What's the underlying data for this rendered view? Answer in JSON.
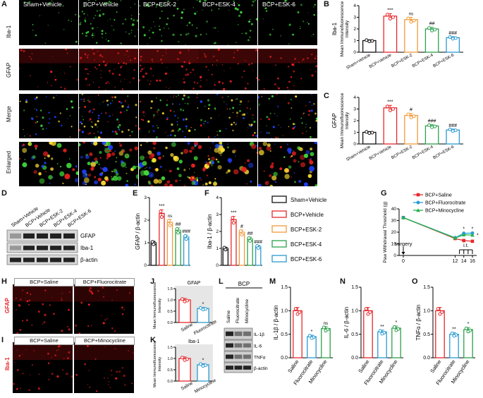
{
  "panels": {
    "A": {
      "label": "A",
      "columns": [
        "Sham+Vehicle",
        "BCP+Vehicle",
        "BCP+ESK-2",
        "BCP+ESK-4",
        "BCP+ESK-6"
      ],
      "rows": [
        "Iba-1",
        "GFAP",
        "Merge",
        "Enlarged"
      ]
    },
    "B": {
      "label": "B",
      "ylabel": "Iba-1",
      "ylabel2": "Mean Immunofluorescence\nIntensity",
      "chart_data": {
        "type": "bar",
        "categories": [
          "Sham+Vehicle",
          "BCP+Vehicle",
          "BCP+ESK-2",
          "BCP+ESK-4",
          "BCP+ESK-6"
        ],
        "values": [
          1.0,
          3.1,
          2.8,
          2.0,
          1.25
        ],
        "ylim": [
          0,
          4
        ],
        "yticks": [
          0,
          1,
          2,
          3,
          4
        ],
        "annotations": [
          "",
          "***",
          "ns",
          "##",
          "###"
        ]
      }
    },
    "C": {
      "label": "C",
      "ylabel": "GFAP",
      "ylabel2": "Mean Immunofluorescence\nIntensity",
      "chart_data": {
        "type": "bar",
        "categories": [
          "Sham+Vehicle",
          "BCP+Vehicle",
          "BCP+ESK-2",
          "BCP+ESK-4",
          "BCP+ESK-6"
        ],
        "values": [
          1.0,
          3.1,
          2.45,
          1.55,
          1.2
        ],
        "ylim": [
          0,
          4
        ],
        "yticks": [
          0,
          1,
          2,
          3,
          4
        ],
        "annotations": [
          "",
          "***",
          "#",
          "###",
          "###"
        ]
      }
    },
    "D": {
      "label": "D",
      "lanes": [
        "Sham+Vehicle",
        "BCP+Vehicle",
        "BCP+ESK-2",
        "BCP+ESK-4",
        "BCP+ESK-6"
      ],
      "bands": [
        "GFAP",
        "Iba-1",
        "β-actin"
      ]
    },
    "E": {
      "label": "E",
      "ylabel": "GFAP / β-actin",
      "chart_data": {
        "type": "bar",
        "values": [
          1.0,
          2.3,
          1.9,
          1.55,
          1.25
        ],
        "ylim": [
          0,
          3
        ],
        "yticks": [
          0,
          1,
          2,
          3
        ],
        "annotations": [
          "",
          "***",
          "ns",
          "##",
          "###"
        ]
      }
    },
    "F": {
      "label": "F",
      "ylabel": "Iba-1 / β-actin",
      "chart_data": {
        "type": "bar",
        "values": [
          1.0,
          2.7,
          1.95,
          1.55,
          1.1
        ],
        "ylim": [
          0,
          4
        ],
        "yticks": [
          0,
          1,
          2,
          3,
          4
        ],
        "annotations": [
          "",
          "***",
          "#",
          "##",
          "###"
        ]
      }
    },
    "legend": {
      "items": [
        "Sham+Vehicle",
        "BCP+Vehicle",
        "BCP+ESK-2",
        "BCP+ESK-4",
        "BCP+ESK-6"
      ]
    },
    "G": {
      "label": "G",
      "ylabel": "Paw Withdrawal Threshold (g)",
      "surgery": "surgery",
      "it": "i.t.",
      "chart_data": {
        "type": "line",
        "x": [
          0,
          12,
          14,
          16
        ],
        "xlim": [
          0,
          16
        ],
        "ylim": [
          0,
          40
        ],
        "yticks": [
          0,
          10,
          20,
          30,
          40
        ],
        "xticks": [
          0,
          12,
          14,
          16
        ],
        "series": [
          {
            "name": "BCP+Saline",
            "values": [
              32.5,
              14.5,
              12.8,
              12.2
            ],
            "color": "#e8272b"
          },
          {
            "name": "BCP+Fluorocitrate",
            "values": [
              32.5,
              15.2,
              19.0,
              19.2
            ],
            "color": "#2a9fd8"
          },
          {
            "name": "BCP+Minocycline",
            "values": [
              32.5,
              15.0,
              17.8,
              17.5
            ],
            "color": "#22b34a"
          }
        ],
        "annotations": [
          "*",
          "*",
          "*"
        ]
      }
    },
    "H": {
      "label": "H",
      "cols": [
        "BCP+Saline",
        "BCP+Fluorocitrate"
      ],
      "row": "GFAP"
    },
    "I": {
      "label": "I",
      "cols": [
        "BCP+Saline",
        "BCP+Minocycline"
      ],
      "row": "Iba-1"
    },
    "J": {
      "label": "J",
      "title": "GFAP",
      "ylabel": "Mean Immunofluorescence\nIntensity",
      "chart_data": {
        "type": "bar",
        "categories": [
          "Saline",
          "Fluorocitrate"
        ],
        "values": [
          1.0,
          0.62
        ],
        "ylim": [
          0,
          1.5
        ],
        "yticks": [
          0.0,
          0.5,
          1.0,
          1.5
        ],
        "annotations": [
          "",
          "*"
        ]
      }
    },
    "K": {
      "label": "K",
      "title": "Iba-1",
      "ylabel": "Mean Immunofluorescence\nIntensity",
      "chart_data": {
        "type": "bar",
        "categories": [
          "Saline",
          "Minocycline"
        ],
        "values": [
          1.0,
          0.72
        ],
        "ylim": [
          0,
          1.5
        ],
        "yticks": [
          0.0,
          0.5,
          1.0,
          1.5
        ],
        "annotations": [
          "",
          "*"
        ]
      }
    },
    "L": {
      "label": "L",
      "header": "BCP",
      "lanes": [
        "Saline",
        "Fluorocitrate",
        "Minocycline"
      ],
      "bands": [
        "IL-1β",
        "IL-6",
        "TNFα",
        "β-actin"
      ]
    },
    "M": {
      "label": "M",
      "ylabel": "IL-1β / β-actin",
      "chart_data": {
        "type": "bar",
        "categories": [
          "Saline",
          "Fluorocitrate",
          "Minocycline"
        ],
        "values": [
          1.0,
          0.45,
          0.62
        ],
        "ylim": [
          0,
          1.5
        ],
        "yticks": [
          0.0,
          0.5,
          1.0,
          1.5
        ],
        "annotations": [
          "",
          "*",
          "ns"
        ]
      }
    },
    "N": {
      "label": "N",
      "ylabel": "IL-6 / β-actin",
      "chart_data": {
        "type": "bar",
        "categories": [
          "Saline",
          "Fluorocitrate",
          "Minocycline"
        ],
        "values": [
          1.0,
          0.55,
          0.63
        ],
        "ylim": [
          0,
          1.5
        ],
        "yticks": [
          0.0,
          0.5,
          1.0,
          1.5
        ],
        "annotations": [
          "",
          "**",
          "*"
        ]
      }
    },
    "O": {
      "label": "O",
      "ylabel": "TNFα / β-actin",
      "chart_data": {
        "type": "bar",
        "categories": [
          "Saline",
          "Fluorocitrate",
          "Minocycline"
        ],
        "values": [
          1.0,
          0.5,
          0.6
        ],
        "ylim": [
          0,
          1.5
        ],
        "yticks": [
          0.0,
          0.5,
          1.0,
          1.5
        ],
        "annotations": [
          "",
          "**",
          "*"
        ]
      }
    }
  },
  "colors": {
    "sham": "#111111",
    "bcp": "#e8272b",
    "esk2": "#f29a3a",
    "esk4": "#2ca04c",
    "esk6": "#2b9ad1"
  }
}
